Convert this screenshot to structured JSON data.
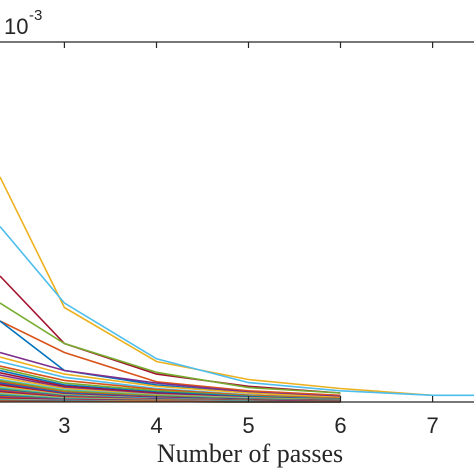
{
  "chart_data": {
    "type": "line",
    "title": "",
    "xlabel": "Number of passes",
    "ylabel": "",
    "exponent_label": {
      "base": "10",
      "power": "-3"
    },
    "xlim": [
      2.3,
      7.45
    ],
    "ylim": [
      0,
      8
    ],
    "x_ticks": [
      3,
      4,
      5,
      6,
      7
    ],
    "grid": false,
    "series": [
      {
        "color": "#EDB120",
        "x": [
          2.3,
          3,
          4,
          5,
          6,
          7
        ],
        "y": [
          5.0,
          2.1,
          0.9,
          0.5,
          0.3,
          0.15
        ]
      },
      {
        "color": "#4DBEEE",
        "x": [
          2.3,
          3,
          4,
          5,
          6,
          7,
          7.45
        ],
        "y": [
          3.9,
          2.2,
          0.96,
          0.43,
          0.25,
          0.15,
          0.15
        ]
      },
      {
        "color": "#A2142F",
        "x": [
          2.3,
          3,
          4,
          5,
          6
        ],
        "y": [
          2.8,
          1.3,
          0.62,
          0.35,
          0.2
        ]
      },
      {
        "color": "#77AC30",
        "x": [
          2.3,
          3,
          4,
          5,
          6
        ],
        "y": [
          2.2,
          1.3,
          0.66,
          0.32,
          0.2
        ]
      },
      {
        "color": "#D95319",
        "x": [
          2.3,
          3,
          4,
          5,
          6
        ],
        "y": [
          1.8,
          1.1,
          0.45,
          0.25,
          0.15
        ]
      },
      {
        "color": "#0072BD",
        "x": [
          2.3,
          3,
          4,
          5,
          6
        ],
        "y": [
          1.8,
          0.7,
          0.38,
          0.2,
          0.12
        ]
      },
      {
        "color": "#7E2F8E",
        "x": [
          2.3,
          3,
          4,
          5,
          6
        ],
        "y": [
          1.1,
          0.7,
          0.42,
          0.22,
          0.12
        ]
      },
      {
        "color": "#EDB120",
        "x": [
          2.3,
          3,
          4,
          5,
          6
        ],
        "y": [
          1.0,
          0.62,
          0.35,
          0.2,
          0.1
        ]
      },
      {
        "color": "#4DBEEE",
        "x": [
          2.3,
          3,
          4,
          5,
          6
        ],
        "y": [
          0.9,
          0.55,
          0.3,
          0.16,
          0.08
        ]
      },
      {
        "color": "#D95319",
        "x": [
          2.3,
          3,
          4,
          5,
          6
        ],
        "y": [
          0.8,
          0.48,
          0.28,
          0.15,
          0.08
        ]
      },
      {
        "color": "#77AC30",
        "x": [
          2.3,
          3,
          4,
          5,
          6
        ],
        "y": [
          0.75,
          0.42,
          0.25,
          0.13,
          0.07
        ]
      },
      {
        "color": "#0072BD",
        "x": [
          2.3,
          3,
          4,
          5,
          6
        ],
        "y": [
          0.7,
          0.38,
          0.22,
          0.12,
          0.06
        ]
      },
      {
        "color": "#A2142F",
        "x": [
          2.3,
          3,
          4,
          5,
          6
        ],
        "y": [
          0.65,
          0.35,
          0.2,
          0.1,
          0.05
        ]
      },
      {
        "color": "#7E2F8E",
        "x": [
          2.3,
          3,
          4,
          5,
          6
        ],
        "y": [
          0.6,
          0.32,
          0.18,
          0.1,
          0.05
        ]
      },
      {
        "color": "#EDB120",
        "x": [
          2.3,
          3,
          4,
          5,
          6
        ],
        "y": [
          0.55,
          0.3,
          0.16,
          0.09,
          0.05
        ]
      },
      {
        "color": "#4DBEEE",
        "x": [
          2.3,
          3,
          4,
          5,
          6
        ],
        "y": [
          0.5,
          0.27,
          0.15,
          0.08,
          0.04
        ]
      },
      {
        "color": "#77AC30",
        "x": [
          2.3,
          3,
          4,
          5,
          6
        ],
        "y": [
          0.48,
          0.25,
          0.14,
          0.07,
          0.04
        ]
      },
      {
        "color": "#D95319",
        "x": [
          2.3,
          3,
          4,
          5,
          6
        ],
        "y": [
          0.45,
          0.22,
          0.12,
          0.06,
          0.03
        ]
      },
      {
        "color": "#0072BD",
        "x": [
          2.3,
          3,
          4,
          5,
          6
        ],
        "y": [
          0.42,
          0.2,
          0.11,
          0.06,
          0.03
        ]
      },
      {
        "color": "#7E2F8E",
        "x": [
          2.3,
          3,
          4,
          5,
          6
        ],
        "y": [
          0.4,
          0.18,
          0.1,
          0.05,
          0.03
        ]
      },
      {
        "color": "#A2142F",
        "x": [
          2.3,
          3,
          4,
          5,
          6
        ],
        "y": [
          0.38,
          0.17,
          0.09,
          0.05,
          0.02
        ]
      },
      {
        "color": "#EDB120",
        "x": [
          2.3,
          3,
          4,
          5,
          6
        ],
        "y": [
          0.35,
          0.16,
          0.08,
          0.04,
          0.02
        ]
      },
      {
        "color": "#4DBEEE",
        "x": [
          2.3,
          3,
          4,
          5,
          6
        ],
        "y": [
          0.32,
          0.15,
          0.08,
          0.04,
          0.02
        ]
      },
      {
        "color": "#77AC30",
        "x": [
          2.3,
          3,
          4,
          5,
          6
        ],
        "y": [
          0.3,
          0.14,
          0.07,
          0.04,
          0.02
        ]
      },
      {
        "color": "#0072BD",
        "x": [
          2.3,
          3,
          4,
          5,
          6
        ],
        "y": [
          0.28,
          0.13,
          0.07,
          0.03,
          0.02
        ]
      },
      {
        "color": "#D95319",
        "x": [
          2.3,
          3,
          4,
          5,
          6
        ],
        "y": [
          0.26,
          0.12,
          0.06,
          0.03,
          0.02
        ]
      },
      {
        "color": "#7E2F8E",
        "x": [
          2.3,
          3,
          4,
          5,
          6
        ],
        "y": [
          0.24,
          0.11,
          0.06,
          0.03,
          0.01
        ]
      },
      {
        "color": "#A2142F",
        "x": [
          2.3,
          3,
          4,
          5,
          6
        ],
        "y": [
          0.22,
          0.1,
          0.05,
          0.03,
          0.01
        ]
      },
      {
        "color": "#EDB120",
        "x": [
          2.3,
          3,
          4,
          5,
          6
        ],
        "y": [
          0.2,
          0.09,
          0.05,
          0.02,
          0.01
        ]
      },
      {
        "color": "#4DBEEE",
        "x": [
          2.3,
          3,
          4,
          5,
          6
        ],
        "y": [
          0.18,
          0.08,
          0.04,
          0.02,
          0.01
        ]
      },
      {
        "color": "#77AC30",
        "x": [
          2.3,
          3,
          4,
          5,
          6
        ],
        "y": [
          0.16,
          0.07,
          0.04,
          0.02,
          0.01
        ]
      },
      {
        "color": "#0072BD",
        "x": [
          2.3,
          3,
          4,
          5,
          6
        ],
        "y": [
          0.14,
          0.06,
          0.03,
          0.02,
          0.01
        ]
      },
      {
        "color": "#D95319",
        "x": [
          2.3,
          3,
          4,
          5,
          6
        ],
        "y": [
          0.12,
          0.05,
          0.03,
          0.01,
          0.01
        ]
      },
      {
        "color": "#7E2F8E",
        "x": [
          2.3,
          3,
          4,
          5,
          6
        ],
        "y": [
          0.1,
          0.05,
          0.03,
          0.01,
          0.01
        ]
      },
      {
        "color": "#A2142F",
        "x": [
          2.3,
          3,
          4,
          5,
          6
        ],
        "y": [
          0.08,
          0.04,
          0.02,
          0.01,
          0.0
        ]
      },
      {
        "color": "#EDB120",
        "x": [
          2.3,
          3,
          4,
          5,
          6
        ],
        "y": [
          0.06,
          0.03,
          0.02,
          0.01,
          0.0
        ]
      },
      {
        "color": "#4DBEEE",
        "x": [
          2.3,
          3,
          4,
          5,
          6
        ],
        "y": [
          0.05,
          0.03,
          0.01,
          0.01,
          0.0
        ]
      },
      {
        "color": "#77AC30",
        "x": [
          2.3,
          3,
          4,
          5,
          6
        ],
        "y": [
          0.04,
          0.02,
          0.01,
          0.0,
          0.0
        ]
      },
      {
        "color": "#0072BD",
        "x": [
          2.3,
          3,
          4,
          5,
          6
        ],
        "y": [
          0.03,
          0.02,
          0.01,
          0.0,
          0.0
        ]
      },
      {
        "color": "#D95319",
        "x": [
          2.3,
          3,
          4,
          5,
          6
        ],
        "y": [
          0.02,
          0.01,
          0.01,
          0.0,
          0.0
        ]
      }
    ]
  }
}
